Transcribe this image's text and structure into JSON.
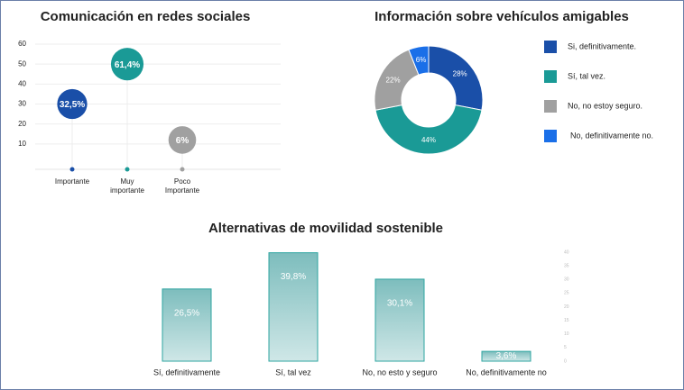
{
  "charts": [
    {
      "type": "bubble",
      "title": "Comunicación en redes sociales",
      "categories": [
        "Importante",
        "Muy importante",
        "Poco Importante"
      ],
      "y": [
        30,
        50,
        12
      ],
      "values": [
        32.5,
        61.4,
        6
      ],
      "value_labels": [
        "32,5%",
        "61,4%",
        "6%"
      ],
      "colors": [
        "#1a4fa8",
        "#1a9a96",
        "#a0a0a0"
      ],
      "ylim": [
        0,
        60
      ],
      "yticks": [
        10,
        20,
        30,
        40,
        50,
        60
      ],
      "grid": true
    },
    {
      "type": "donut",
      "title": "Información sobre vehículos amigables",
      "categories": [
        "Si, definitivamente.",
        "Sí, tal vez.",
        "No, no estoy seguro.",
        "No, definitivamente no."
      ],
      "values": [
        28,
        44,
        22,
        6
      ],
      "value_labels": [
        "28%",
        "44%",
        "22%",
        "6%"
      ],
      "colors": [
        "#1a4fa8",
        "#1a9a96",
        "#a0a0a0",
        "#1a6fe8"
      ],
      "legend": "right"
    },
    {
      "type": "bar",
      "title": "Alternativas de movilidad sostenible",
      "categories": [
        "Sí, definitivamente",
        "Sí, tal vez",
        "No, no esto y seguro",
        "No, definitivamente no"
      ],
      "values": [
        26.5,
        39.8,
        30.1,
        3.6
      ],
      "value_labels": [
        "26,5%",
        "39,8%",
        "30,1%",
        "3,6%"
      ],
      "color": "#8cc6c6",
      "ylim": [
        0,
        40
      ],
      "yticks": [
        0,
        5,
        10,
        15,
        20,
        25,
        30,
        35,
        40
      ],
      "grid": false
    }
  ]
}
